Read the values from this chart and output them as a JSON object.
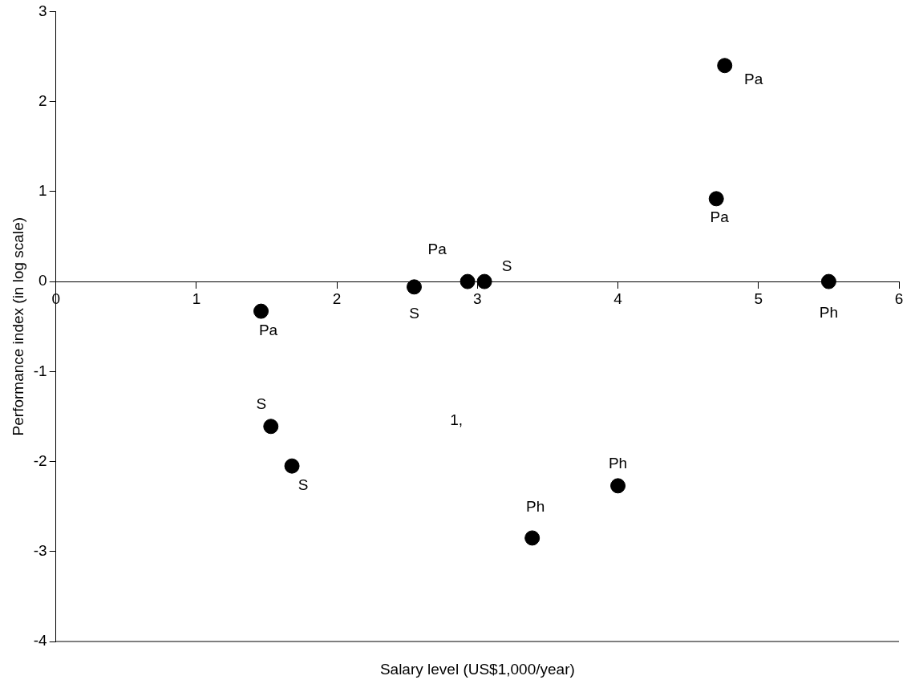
{
  "chart_data": {
    "type": "scatter",
    "xlabel": "Salary level (US$1,000/year)",
    "ylabel": "Performance index (in log scale)",
    "x": [
      1.46,
      1.53,
      1.68,
      2.55,
      2.93,
      3.05,
      3.39,
      4.0,
      4.7,
      4.76,
      5.5
    ],
    "series": [
      {
        "color": "#000000",
        "values": [
          -0.33,
          -1.61,
          -2.05,
          -0.06,
          0,
          0,
          -2.85,
          -2.27,
          0.92,
          2.4,
          0
        ]
      }
    ],
    "xlim": [
      0,
      6
    ],
    "xticks": [
      0,
      1,
      2,
      3,
      4,
      5,
      6
    ],
    "ylim": [
      -4,
      3
    ],
    "yticks": [
      -4,
      -3,
      -2,
      -1,
      0,
      1,
      2,
      3
    ],
    "marker": "circle",
    "grid": false,
    "legend": false,
    "annotations": [
      {
        "text": "Pa",
        "x": 1.46,
        "y": -0.33
      },
      {
        "text": "S",
        "x": 1.53,
        "y": -1.61
      },
      {
        "text": "S",
        "x": 1.68,
        "y": -2.05
      },
      {
        "text": "S",
        "x": 2.55,
        "y": -0.06
      },
      {
        "text": "Pa",
        "x": 2.93,
        "y": 0
      },
      {
        "text": "S",
        "x": 3.05,
        "y": 0
      },
      {
        "text": "Ph",
        "x": 3.39,
        "y": -2.85
      },
      {
        "text": "Ph",
        "x": 4.0,
        "y": -2.27
      },
      {
        "text": "Pa",
        "x": 4.7,
        "y": 0.92
      },
      {
        "text": "Pa",
        "x": 4.76,
        "y": 2.4
      },
      {
        "text": "Ph",
        "x": 5.5,
        "y": 0
      },
      "1,"
    ]
  }
}
